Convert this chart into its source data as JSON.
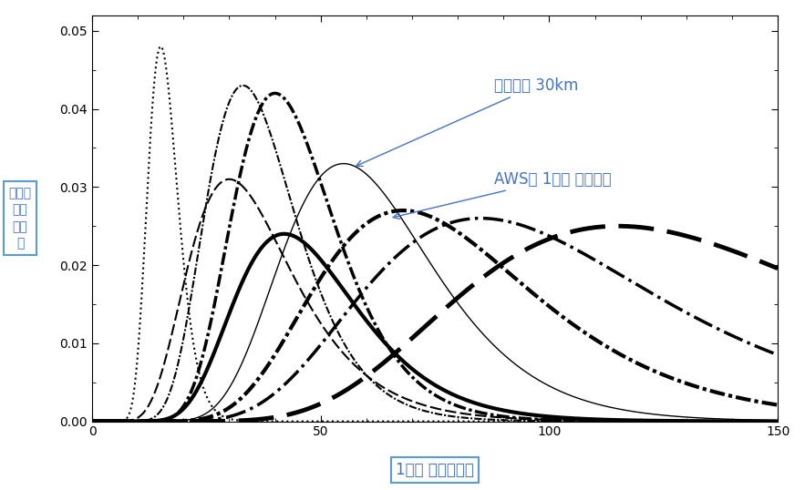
{
  "xlabel": "1시간 누적강수량",
  "ylabel": "다양도\n밀도\n함수\n의",
  "xlim": [
    0,
    150
  ],
  "ylim": [
    0.0,
    0.052
  ],
  "yticks": [
    0.0,
    0.01,
    0.02,
    0.03,
    0.04,
    0.05
  ],
  "xticks": [
    0,
    50,
    100,
    150
  ],
  "annotation1": "버블반경 30km",
  "annotation2": "AWS의 1시간 최다강수",
  "annotation_color": "#4472c4",
  "annotation_fontsize": 12
}
